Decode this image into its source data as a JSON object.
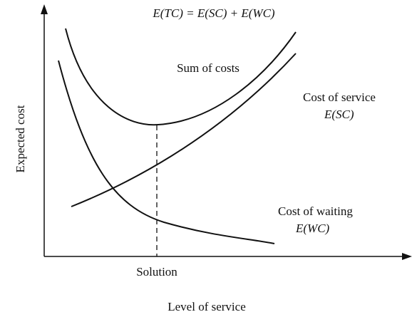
{
  "title": "E(TC) = E(SC) + E(WC)",
  "y_axis_label": "Expected cost",
  "x_axis_label": "Level of service",
  "x_marker": "Solution",
  "curves": [
    {
      "label": "Sum of costs"
    },
    {
      "label": "Cost of service",
      "sublabel": "E(SC)"
    },
    {
      "label": "Cost of waiting",
      "sublabel": "E(WC)"
    }
  ]
}
